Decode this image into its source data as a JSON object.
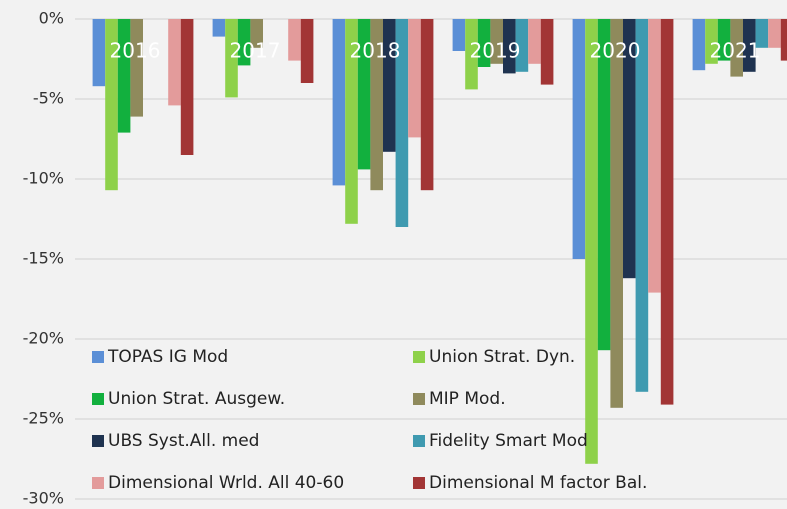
{
  "chart_data": {
    "type": "bar",
    "categories": [
      "2016",
      "2017",
      "2018",
      "2019",
      "2020",
      "2021"
    ],
    "series": [
      {
        "name": "TOPAS IG Mod",
        "color": "#5b8fd6",
        "values": [
          -4.2,
          -1.1,
          -10.4,
          -2.0,
          -15.0,
          -3.2
        ]
      },
      {
        "name": "Union Strat. Dyn.",
        "color": "#8ed14a",
        "values": [
          -10.7,
          -4.9,
          -12.8,
          -4.4,
          -27.8,
          -2.8
        ]
      },
      {
        "name": "Union Strat. Ausgew.",
        "color": "#12b03e",
        "values": [
          -7.1,
          -2.9,
          -9.4,
          -3.0,
          -20.7,
          -2.6
        ]
      },
      {
        "name": "MIP Mod.",
        "color": "#8f8a5c",
        "values": [
          -6.1,
          -1.8,
          -10.7,
          -2.8,
          -24.3,
          -3.6
        ]
      },
      {
        "name": "UBS Syst.All. med",
        "color": "#1f3350",
        "values": [
          null,
          null,
          -8.3,
          -3.4,
          -16.2,
          -3.3
        ]
      },
      {
        "name": "Fidelity Smart Mod",
        "color": "#3f9ab0",
        "values": [
          null,
          null,
          -13.0,
          -3.3,
          -23.3,
          -1.8
        ]
      },
      {
        "name": "Dimensional Wrld. All 40-60",
        "color": "#e39b9b",
        "values": [
          -5.4,
          -2.6,
          -7.4,
          -2.8,
          -17.1,
          -1.8
        ]
      },
      {
        "name": "Dimensional M factor Bal.",
        "color": "#a23535",
        "values": [
          -8.5,
          -4.0,
          -10.7,
          -4.1,
          -24.1,
          -2.6
        ]
      }
    ],
    "ylim": [
      -30,
      0
    ],
    "yticks": [
      {
        "value": 0,
        "label": "0%"
      },
      {
        "value": -5,
        "label": "-5%"
      },
      {
        "value": -10,
        "label": "-10%"
      },
      {
        "value": -15,
        "label": "-15%"
      },
      {
        "value": -20,
        "label": "-20%"
      },
      {
        "value": -25,
        "label": "-25%"
      },
      {
        "value": -30,
        "label": "-30%"
      }
    ],
    "grid": true,
    "legend": "bottom-left"
  }
}
